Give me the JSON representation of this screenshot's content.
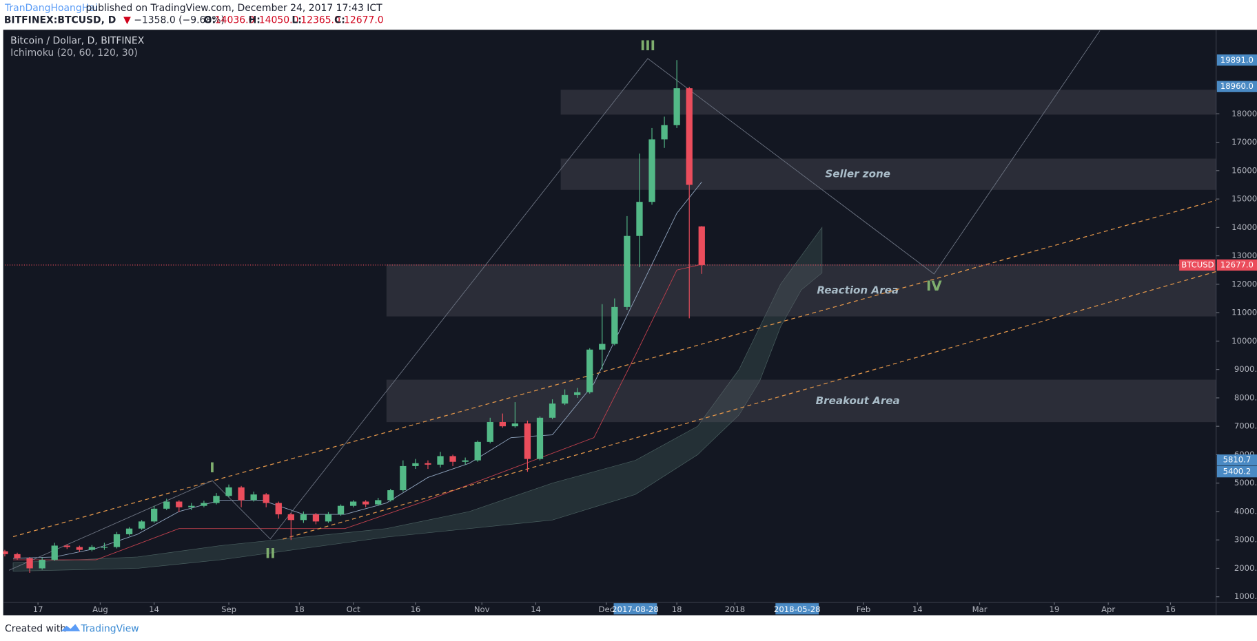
{
  "header": {
    "author": "TranDangHoangHai",
    "published": "published on TradingView.com, December 24, 2017 17:43 ICT",
    "symbol": "BITFINEX:BTCUSD, D",
    "change_arrow": "▼",
    "change": "−1358.0 (−9.68%)",
    "ohlc": [
      {
        "label": "O:",
        "value": "14036.0"
      },
      {
        "label": "H:",
        "value": "14050.0"
      },
      {
        "label": "L:",
        "value": "12365.0"
      },
      {
        "label": "C:",
        "value": "12677.0"
      }
    ]
  },
  "chart_data": {
    "type": "candlestick",
    "title": "Bitcoin / Dollar, D, BITFINEX",
    "indicator": "Ichimoku (20, 60, 120, 30)",
    "up_color": "#53b987",
    "down_color": "#eb4d5c",
    "x": [
      "2017-07-09",
      "2017-07-12",
      "2017-07-15",
      "2017-07-18",
      "2017-07-21",
      "2017-07-24",
      "2017-07-27",
      "2017-07-30",
      "2017-08-02",
      "2017-08-05",
      "2017-08-08",
      "2017-08-11",
      "2017-08-14",
      "2017-08-17",
      "2017-08-20",
      "2017-08-23",
      "2017-08-26",
      "2017-08-29",
      "2017-09-01",
      "2017-09-04",
      "2017-09-07",
      "2017-09-10",
      "2017-09-13",
      "2017-09-16",
      "2017-09-19",
      "2017-09-22",
      "2017-09-25",
      "2017-09-28",
      "2017-10-01",
      "2017-10-04",
      "2017-10-07",
      "2017-10-10",
      "2017-10-13",
      "2017-10-16",
      "2017-10-19",
      "2017-10-22",
      "2017-10-25",
      "2017-10-28",
      "2017-10-31",
      "2017-11-03",
      "2017-11-06",
      "2017-11-09",
      "2017-11-12",
      "2017-11-15",
      "2017-11-18",
      "2017-11-21",
      "2017-11-24",
      "2017-11-27",
      "2017-11-30",
      "2017-12-03",
      "2017-12-06",
      "2017-12-09",
      "2017-12-12",
      "2017-12-15",
      "2017-12-18",
      "2017-12-21",
      "2017-12-24"
    ],
    "open": [
      2600,
      2500,
      2350,
      2000,
      2300,
      2800,
      2750,
      2650,
      2750,
      2750,
      3200,
      3400,
      3650,
      4100,
      4350,
      4150,
      4200,
      4300,
      4550,
      4850,
      4400,
      4600,
      4300,
      3900,
      3700,
      3900,
      3650,
      3900,
      4200,
      4350,
      4250,
      4400,
      4750,
      5600,
      5700,
      5650,
      5950,
      5750,
      5800,
      6450,
      7150,
      7000,
      7100,
      5850,
      7300,
      7800,
      8100,
      8200,
      9700,
      9900,
      11200,
      13700,
      14900,
      17100,
      17600,
      18900,
      14036
    ],
    "high": [
      2650,
      2550,
      2400,
      2380,
      2900,
      2850,
      2800,
      2820,
      2900,
      3280,
      3450,
      3700,
      4200,
      4450,
      4400,
      4300,
      4380,
      4650,
      4950,
      4900,
      4700,
      4650,
      4350,
      3950,
      4000,
      3950,
      3980,
      4250,
      4400,
      4400,
      4480,
      4800,
      5800,
      5850,
      5800,
      6100,
      6000,
      5900,
      6500,
      7300,
      7450,
      7850,
      7200,
      7350,
      7950,
      8300,
      8350,
      9750,
      11300,
      11500,
      14400,
      16600,
      17500,
      17900,
      19891,
      18950,
      14050
    ],
    "low": [
      2420,
      2300,
      1840,
      1950,
      2270,
      2680,
      2580,
      2600,
      2650,
      2700,
      3150,
      3350,
      3600,
      4050,
      3980,
      4050,
      4150,
      4250,
      4500,
      4150,
      4350,
      4150,
      3750,
      3000,
      3600,
      3550,
      3600,
      3850,
      4150,
      4150,
      4200,
      4350,
      4700,
      5500,
      5500,
      5550,
      5600,
      5650,
      5750,
      6400,
      6950,
      6950,
      5400,
      5800,
      7250,
      7750,
      8000,
      8150,
      9000,
      9850,
      11100,
      12600,
      14800,
      16800,
      17500,
      10800,
      12365
    ],
    "close": [
      2500,
      2350,
      2000,
      2300,
      2800,
      2750,
      2650,
      2750,
      2750,
      3200,
      3400,
      3650,
      4100,
      4350,
      4150,
      4200,
      4300,
      4550,
      4850,
      4400,
      4600,
      4300,
      3900,
      3700,
      3900,
      3650,
      3900,
      4200,
      4350,
      4250,
      4400,
      4750,
      5600,
      5700,
      5650,
      5950,
      5750,
      5800,
      6450,
      7150,
      7000,
      7100,
      5850,
      7300,
      7800,
      8100,
      8200,
      9700,
      9900,
      11200,
      13700,
      14900,
      17100,
      17600,
      18900,
      15500,
      12677
    ],
    "xlim": [
      "2017-07-09",
      "2018-04-27"
    ],
    "ylim": [
      800,
      20930
    ],
    "xticks": [
      {
        "value": "2017-07-17",
        "label": "17"
      },
      {
        "value": "2017-08-01",
        "label": "Aug"
      },
      {
        "value": "2017-08-14",
        "label": "14"
      },
      {
        "value": "2017-09-01",
        "label": "Sep"
      },
      {
        "value": "2017-09-18",
        "label": "18"
      },
      {
        "value": "2017-10-01",
        "label": "Oct"
      },
      {
        "value": "2017-10-16",
        "label": "16"
      },
      {
        "value": "2017-11-01",
        "label": "Nov"
      },
      {
        "value": "2017-11-14",
        "label": "14"
      },
      {
        "value": "2017-12-01",
        "label": "Dec"
      },
      {
        "value": "2017-12-18",
        "label": "18"
      },
      {
        "value": "2018-01-01",
        "label": "2018"
      },
      {
        "value": "2018-02-01",
        "label": "Feb"
      },
      {
        "value": "2018-02-14",
        "label": "14"
      },
      {
        "value": "2018-03-01",
        "label": "Mar"
      },
      {
        "value": "2018-03-19",
        "label": "19"
      },
      {
        "value": "2018-04-01",
        "label": "Apr"
      },
      {
        "value": "2018-04-16",
        "label": "16"
      }
    ],
    "x_markers": [
      {
        "value": "2017-12-08",
        "label": "2017-08-28"
      },
      {
        "value": "2018-01-16",
        "label": "2018-05-28"
      }
    ],
    "yticks": [
      {
        "value": 1000,
        "label": "1000.0"
      },
      {
        "value": 2000,
        "label": "2000.0"
      },
      {
        "value": 3000,
        "label": "3000.0"
      },
      {
        "value": 4000,
        "label": "4000.0"
      },
      {
        "value": 5000,
        "label": "5000.0"
      },
      {
        "value": 6000,
        "label": "6000.0"
      },
      {
        "value": 7000,
        "label": "7000.0"
      },
      {
        "value": 8000,
        "label": "8000.0"
      },
      {
        "value": 9000,
        "label": "9000.0"
      },
      {
        "value": 10000,
        "label": "10000.0"
      },
      {
        "value": 11000,
        "label": "11000.0"
      },
      {
        "value": 12000,
        "label": "12000.0"
      },
      {
        "value": 13000,
        "label": "13000.0"
      },
      {
        "value": 14000,
        "label": "14000.0"
      },
      {
        "value": 15000,
        "label": "15000.0"
      },
      {
        "value": 16000,
        "label": "16000.0"
      },
      {
        "value": 17000,
        "label": "17000.0"
      },
      {
        "value": 18000,
        "label": "18000.0"
      }
    ],
    "price_labels": [
      {
        "value": 19891,
        "label": "19891.0"
      },
      {
        "value": 18960,
        "label": "18960.0"
      },
      {
        "value": 5810.7,
        "label": "5810.7"
      },
      {
        "value": 5400.2,
        "label": "5400.2"
      }
    ],
    "price_label_color": "#4a8ac4",
    "last_price": {
      "name": "BTCUSD",
      "value": 12677,
      "label": "12677.0",
      "color": "#eb4d5c"
    },
    "ichimoku": [
      {
        "color": "#8fa3bd",
        "x": [
          "2017-07-11",
          "2017-07-21",
          "2017-07-31",
          "2017-08-10",
          "2017-08-20",
          "2017-08-30",
          "2017-09-09",
          "2017-09-19",
          "2017-09-29",
          "2017-10-09",
          "2017-10-19",
          "2017-10-29",
          "2017-11-08",
          "2017-11-18",
          "2017-11-28",
          "2017-12-08",
          "2017-12-18",
          "2017-12-24"
        ],
        "values": [
          2350,
          2400,
          2700,
          3200,
          4000,
          4400,
          4400,
          3900,
          3900,
          4300,
          5200,
          5700,
          6600,
          6700,
          8500,
          11500,
          14500,
          15600
        ]
      },
      {
        "color": "#c0404d",
        "x": [
          "2017-07-11",
          "2017-07-31",
          "2017-08-20",
          "2017-09-09",
          "2017-09-29",
          "2017-10-19",
          "2017-11-08",
          "2017-11-28",
          "2017-12-08",
          "2017-12-18",
          "2017-12-24"
        ],
        "values": [
          2300,
          2300,
          3400,
          3400,
          3400,
          4400,
          5500,
          6600,
          9500,
          12500,
          12700
        ]
      }
    ],
    "cloud": {
      "color": "#3a5050",
      "x": [
        "2017-07-11",
        "2017-08-10",
        "2017-08-30",
        "2017-09-19",
        "2017-10-09",
        "2017-10-29",
        "2017-11-18",
        "2017-12-08",
        "2017-12-23",
        "2018-01-02",
        "2018-01-07",
        "2018-01-12",
        "2018-01-17",
        "2018-01-22"
      ],
      "upper": [
        2200,
        2400,
        2800,
        3100,
        3400,
        4000,
        5000,
        5800,
        7000,
        9000,
        10500,
        12000,
        13000,
        14000
      ],
      "lower": [
        1900,
        2000,
        2300,
        2700,
        3100,
        3400,
        3700,
        4600,
        6000,
        7400,
        8600,
        10500,
        11800,
        12400
      ]
    },
    "zone_color": "#5a5560",
    "zones": [
      {
        "x0": "2017-11-20",
        "x1": "2018-04-27",
        "y0": 17972,
        "y1": 18846
      },
      {
        "x0": "2017-11-20",
        "x1": "2018-04-27",
        "y0": 15322,
        "y1": 16422,
        "label": "Seller zone"
      },
      {
        "x0": "2017-10-09",
        "x1": "2018-04-27",
        "y0": 10868,
        "y1": 12700,
        "label": "Reaction Area"
      },
      {
        "x0": "2017-10-09",
        "x1": "2018-04-27",
        "y0": 7146,
        "y1": 8640,
        "label": "Breakout Area"
      }
    ],
    "trendline_color": "#e0954a",
    "trendlines": [
      {
        "x0": "2017-07-11",
        "y0": 3114,
        "x1": "2018-04-27",
        "y1": 14956
      },
      {
        "x0": "2017-09-14",
        "y0": 3030,
        "x1": "2018-04-27",
        "y1": 12446
      }
    ],
    "wave_color": "#6b7280",
    "wave": {
      "x": [
        "2017-07-10",
        "2017-08-28",
        "2017-09-11",
        "2017-12-11",
        "2018-02-18",
        "2018-03-30"
      ],
      "y": [
        1930,
        5088,
        3030,
        19945,
        12362,
        20930
      ]
    },
    "annotation_color": "#7fae6e",
    "annotations": [
      {
        "text": "I",
        "x": "2017-08-28",
        "y": 5510
      },
      {
        "text": "II",
        "x": "2017-09-11",
        "y": 2494
      },
      {
        "text": "III",
        "x": "2017-12-11",
        "y": 20368
      },
      {
        "text": "IV",
        "x": "2018-02-18",
        "y": 11911
      }
    ]
  },
  "footer": {
    "created": "Created with",
    "brand": "TradingView"
  }
}
